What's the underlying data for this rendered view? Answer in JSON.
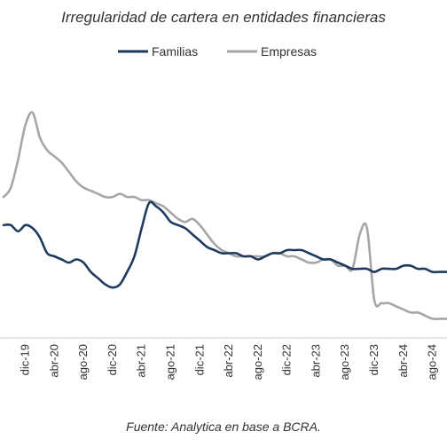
{
  "chart_data": {
    "type": "line",
    "title": "Irregularidad de cartera en entidades financieras",
    "source": "Fuente: Analytica en base a BCRA.",
    "xlabel": "",
    "ylabel": "",
    "legend_position": "top-center",
    "grid": false,
    "x_tick_labels": [
      "dic-19",
      "abr-20",
      "ago-20",
      "dic-20",
      "abr-21",
      "ago-21",
      "dic-21",
      "abr-22",
      "ago-22",
      "dic-22",
      "abr-23",
      "ago-23",
      "dic-23",
      "abr-24",
      "ago-24"
    ],
    "x_start": "2019-09",
    "x_end": "2024-10",
    "series": [
      {
        "name": "Familias",
        "color": "#1f3a5f",
        "points": [
          [
            "2019-09",
            0.58
          ],
          [
            "2019-10",
            0.58
          ],
          [
            "2019-11",
            0.56
          ],
          [
            "2019-12",
            0.58
          ],
          [
            "2020-01",
            0.57
          ],
          [
            "2020-02",
            0.54
          ],
          [
            "2020-03",
            0.49
          ],
          [
            "2020-04",
            0.48
          ],
          [
            "2020-05",
            0.47
          ],
          [
            "2020-06",
            0.46
          ],
          [
            "2020-07",
            0.47
          ],
          [
            "2020-08",
            0.46
          ],
          [
            "2020-09",
            0.43
          ],
          [
            "2020-10",
            0.41
          ],
          [
            "2020-11",
            0.39
          ],
          [
            "2020-12",
            0.38
          ],
          [
            "2021-01",
            0.39
          ],
          [
            "2021-02",
            0.43
          ],
          [
            "2021-03",
            0.48
          ],
          [
            "2021-04",
            0.57
          ],
          [
            "2021-05",
            0.65
          ],
          [
            "2021-06",
            0.64
          ],
          [
            "2021-07",
            0.62
          ],
          [
            "2021-08",
            0.59
          ],
          [
            "2021-09",
            0.58
          ],
          [
            "2021-10",
            0.57
          ],
          [
            "2021-11",
            0.55
          ],
          [
            "2021-12",
            0.53
          ],
          [
            "2022-01",
            0.51
          ],
          [
            "2022-02",
            0.5
          ],
          [
            "2022-03",
            0.49
          ],
          [
            "2022-04",
            0.49
          ],
          [
            "2022-05",
            0.49
          ],
          [
            "2022-06",
            0.48
          ],
          [
            "2022-07",
            0.48
          ],
          [
            "2022-08",
            0.47
          ],
          [
            "2022-09",
            0.48
          ],
          [
            "2022-10",
            0.49
          ],
          [
            "2022-11",
            0.49
          ],
          [
            "2022-12",
            0.5
          ],
          [
            "2023-01",
            0.5
          ],
          [
            "2023-02",
            0.5
          ],
          [
            "2023-03",
            0.49
          ],
          [
            "2023-04",
            0.48
          ],
          [
            "2023-05",
            0.47
          ],
          [
            "2023-06",
            0.47
          ],
          [
            "2023-07",
            0.46
          ],
          [
            "2023-08",
            0.45
          ],
          [
            "2023-09",
            0.44
          ],
          [
            "2023-10",
            0.44
          ],
          [
            "2023-11",
            0.44
          ],
          [
            "2023-12",
            0.43
          ],
          [
            "2024-01",
            0.44
          ],
          [
            "2024-02",
            0.44
          ],
          [
            "2024-03",
            0.44
          ],
          [
            "2024-04",
            0.45
          ],
          [
            "2024-05",
            0.45
          ],
          [
            "2024-06",
            0.44
          ],
          [
            "2024-07",
            0.44
          ],
          [
            "2024-08",
            0.43
          ],
          [
            "2024-09",
            0.43
          ],
          [
            "2024-10",
            0.43
          ]
        ]
      },
      {
        "name": "Empresas",
        "color": "#a6a6a6",
        "points": [
          [
            "2019-09",
            0.67
          ],
          [
            "2019-10",
            0.7
          ],
          [
            "2019-11",
            0.79
          ],
          [
            "2019-12",
            0.9
          ],
          [
            "2020-01",
            0.94
          ],
          [
            "2020-02",
            0.86
          ],
          [
            "2020-03",
            0.82
          ],
          [
            "2020-04",
            0.8
          ],
          [
            "2020-05",
            0.78
          ],
          [
            "2020-06",
            0.75
          ],
          [
            "2020-07",
            0.72
          ],
          [
            "2020-08",
            0.7
          ],
          [
            "2020-09",
            0.69
          ],
          [
            "2020-10",
            0.68
          ],
          [
            "2020-11",
            0.67
          ],
          [
            "2020-12",
            0.67
          ],
          [
            "2021-01",
            0.68
          ],
          [
            "2021-02",
            0.67
          ],
          [
            "2021-03",
            0.67
          ],
          [
            "2021-04",
            0.66
          ],
          [
            "2021-05",
            0.66
          ],
          [
            "2021-06",
            0.65
          ],
          [
            "2021-07",
            0.64
          ],
          [
            "2021-08",
            0.62
          ],
          [
            "2021-09",
            0.6
          ],
          [
            "2021-10",
            0.59
          ],
          [
            "2021-11",
            0.6
          ],
          [
            "2021-12",
            0.58
          ],
          [
            "2022-01",
            0.55
          ],
          [
            "2022-02",
            0.52
          ],
          [
            "2022-03",
            0.5
          ],
          [
            "2022-04",
            0.49
          ],
          [
            "2022-05",
            0.48
          ],
          [
            "2022-06",
            0.48
          ],
          [
            "2022-07",
            0.48
          ],
          [
            "2022-08",
            0.48
          ],
          [
            "2022-09",
            0.48
          ],
          [
            "2022-10",
            0.49
          ],
          [
            "2022-11",
            0.49
          ],
          [
            "2022-12",
            0.48
          ],
          [
            "2023-01",
            0.48
          ],
          [
            "2023-02",
            0.47
          ],
          [
            "2023-03",
            0.46
          ],
          [
            "2023-04",
            0.46
          ],
          [
            "2023-05",
            0.47
          ],
          [
            "2023-06",
            0.47
          ],
          [
            "2023-07",
            0.45
          ],
          [
            "2023-08",
            0.45
          ],
          [
            "2023-09",
            0.44
          ],
          [
            "2023-10",
            0.55
          ],
          [
            "2023-11",
            0.57
          ],
          [
            "2023-12",
            0.34
          ],
          [
            "2024-01",
            0.33
          ],
          [
            "2024-02",
            0.33
          ],
          [
            "2024-03",
            0.32
          ],
          [
            "2024-04",
            0.31
          ],
          [
            "2024-05",
            0.3
          ],
          [
            "2024-06",
            0.3
          ],
          [
            "2024-07",
            0.29
          ],
          [
            "2024-08",
            0.28
          ],
          [
            "2024-09",
            0.28
          ],
          [
            "2024-10",
            0.28
          ]
        ]
      }
    ]
  }
}
